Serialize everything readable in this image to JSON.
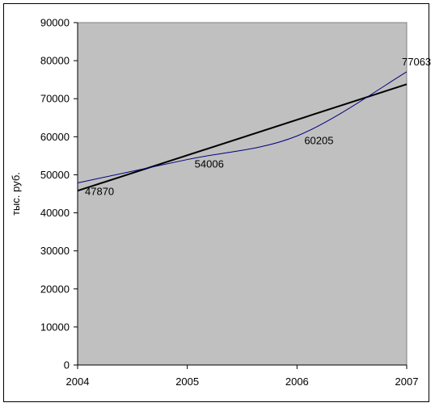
{
  "chart_data": {
    "type": "line",
    "title": "",
    "xlabel": "",
    "ylabel": "тыс. руб.",
    "x": [
      2004,
      2005,
      2006,
      2007
    ],
    "xlim": [
      2004,
      2007
    ],
    "ylim": [
      0,
      90000
    ],
    "yticks": [
      0,
      10000,
      20000,
      30000,
      40000,
      50000,
      60000,
      70000,
      80000,
      90000
    ],
    "xticks": [
      2004,
      2005,
      2006,
      2007
    ],
    "grid": false,
    "legend": "none",
    "series": [
      {
        "values": [
          47870,
          54006,
          60205,
          77063
        ],
        "data_labels": [
          "47870",
          "54006",
          "60205",
          "77063"
        ],
        "color": "#000080",
        "style": "smoothed"
      }
    ],
    "trendline": {
      "type": "linear",
      "start": [
        2004,
        45800
      ],
      "end": [
        2007,
        73800
      ],
      "color": "#000000"
    },
    "plot_background": "#c0c0c0"
  }
}
